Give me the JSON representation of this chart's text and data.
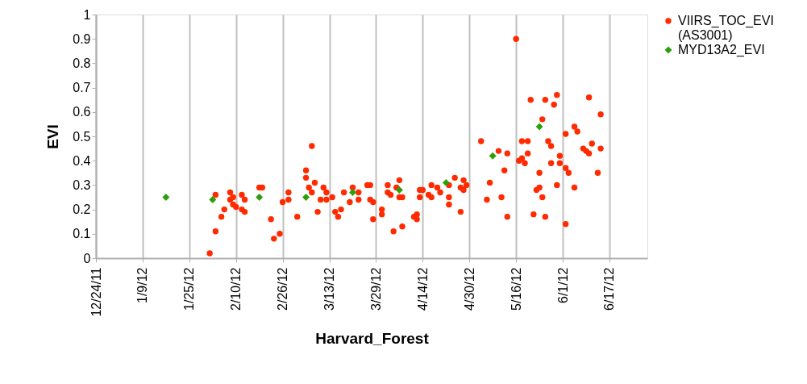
{
  "chart_data": {
    "type": "scatter",
    "xlabel": "Harvard_Forest",
    "ylabel": "EVI",
    "xlim": [
      "2011-12-24",
      "2012-06-30"
    ],
    "ylim": [
      0,
      1
    ],
    "xticks": [
      {
        "value": "2011-12-24",
        "label": "12/24/11"
      },
      {
        "value": "2012-01-09",
        "label": "1/9/12"
      },
      {
        "value": "2012-01-25",
        "label": "1/25/12"
      },
      {
        "value": "2012-02-10",
        "label": "2/10/12"
      },
      {
        "value": "2012-02-26",
        "label": "2/26/12"
      },
      {
        "value": "2012-03-13",
        "label": "3/13/12"
      },
      {
        "value": "2012-03-29",
        "label": "3/29/12"
      },
      {
        "value": "2012-04-14",
        "label": "4/14/12"
      },
      {
        "value": "2012-04-30",
        "label": "4/30/12"
      },
      {
        "value": "2012-05-16",
        "label": "5/16/12"
      },
      {
        "value": "2012-06-01",
        "label": "6/1/12"
      },
      {
        "value": "2012-06-17",
        "label": "6/17/12"
      }
    ],
    "yticks": [
      0,
      0.1,
      0.2,
      0.3,
      0.4,
      0.5,
      0.6,
      0.7,
      0.8,
      0.9,
      1
    ],
    "grid": "x",
    "legend": "right",
    "series": [
      {
        "name": "VIIRS_TOC_EVI (AS3001)",
        "color": "#ff2a00",
        "marker": "circle",
        "x": [
          "2012-02-01",
          "2012-02-03",
          "2012-02-03",
          "2012-02-05",
          "2012-02-06",
          "2012-02-08",
          "2012-02-08",
          "2012-02-09",
          "2012-02-09",
          "2012-02-10",
          "2012-02-12",
          "2012-02-12",
          "2012-02-13",
          "2012-02-13",
          "2012-02-18",
          "2012-02-19",
          "2012-02-22",
          "2012-02-23",
          "2012-02-25",
          "2012-02-26",
          "2012-02-28",
          "2012-02-28",
          "2012-03-02",
          "2012-03-05",
          "2012-03-05",
          "2012-03-06",
          "2012-03-07",
          "2012-03-07",
          "2012-03-08",
          "2012-03-09",
          "2012-03-11",
          "2012-03-12",
          "2012-03-10",
          "2012-03-12",
          "2012-03-14",
          "2012-03-15",
          "2012-03-16",
          "2012-03-17",
          "2012-03-18",
          "2012-03-20",
          "2012-03-21",
          "2012-03-23",
          "2012-03-23",
          "2012-03-26",
          "2012-03-27",
          "2012-03-27",
          "2012-03-28",
          "2012-03-28",
          "2012-03-31",
          "2012-03-31",
          "2012-04-02",
          "2012-04-02",
          "2012-04-03",
          "2012-04-04",
          "2012-04-05",
          "2012-04-06",
          "2012-04-06",
          "2012-04-07",
          "2012-04-07",
          "2012-04-11",
          "2012-04-12",
          "2012-04-12",
          "2012-04-13",
          "2012-04-13",
          "2012-04-14",
          "2012-04-16",
          "2012-04-17",
          "2012-04-17",
          "2012-04-19",
          "2012-04-20",
          "2012-04-23",
          "2012-04-23",
          "2012-04-23",
          "2012-04-25",
          "2012-04-27",
          "2012-04-27",
          "2012-04-28",
          "2012-04-28",
          "2012-04-29",
          "2012-05-04",
          "2012-05-06",
          "2012-05-07",
          "2012-05-10",
          "2012-05-11",
          "2012-05-12",
          "2012-05-13",
          "2012-05-13",
          "2012-05-16",
          "2012-05-17",
          "2012-05-18",
          "2012-05-18",
          "2012-05-19",
          "2012-05-20",
          "2012-05-20",
          "2012-05-21",
          "2012-05-22",
          "2012-05-23",
          "2012-05-24",
          "2012-05-24",
          "2012-05-25",
          "2012-05-25",
          "2012-05-26",
          "2012-05-26",
          "2012-05-27",
          "2012-05-28",
          "2012-05-28",
          "2012-05-29",
          "2012-05-30",
          "2012-05-30",
          "2012-05-31",
          "2012-05-31",
          "2012-06-02",
          "2012-06-02",
          "2012-06-02",
          "2012-06-03",
          "2012-06-05",
          "2012-06-05",
          "2012-06-06",
          "2012-06-08",
          "2012-06-09",
          "2012-06-10",
          "2012-06-10",
          "2012-06-11",
          "2012-06-13",
          "2012-06-14",
          "2012-06-14"
        ],
        "values": [
          0.02,
          0.26,
          0.11,
          0.17,
          0.2,
          0.27,
          0.24,
          0.25,
          0.22,
          0.21,
          0.26,
          0.2,
          0.24,
          0.19,
          0.29,
          0.29,
          0.16,
          0.08,
          0.1,
          0.23,
          0.27,
          0.24,
          0.17,
          0.36,
          0.33,
          0.29,
          0.46,
          0.27,
          0.31,
          0.19,
          0.29,
          0.27,
          0.24,
          0.24,
          0.25,
          0.19,
          0.17,
          0.2,
          0.27,
          0.23,
          0.29,
          0.24,
          0.27,
          0.3,
          0.3,
          0.24,
          0.23,
          0.16,
          0.2,
          0.18,
          0.3,
          0.27,
          0.26,
          0.11,
          0.29,
          0.32,
          0.25,
          0.25,
          0.13,
          0.17,
          0.18,
          0.16,
          0.28,
          0.25,
          0.28,
          0.26,
          0.3,
          0.25,
          0.29,
          0.27,
          0.25,
          0.22,
          0.3,
          0.33,
          0.29,
          0.19,
          0.32,
          0.28,
          0.3,
          0.48,
          0.24,
          0.31,
          0.44,
          0.25,
          0.36,
          0.43,
          0.17,
          0.9,
          0.4,
          0.48,
          0.41,
          0.39,
          0.48,
          0.43,
          0.65,
          0.18,
          0.28,
          0.29,
          0.35,
          0.25,
          0.57,
          0.65,
          0.17,
          0.48,
          0.46,
          0.39,
          0.63,
          0.67,
          0.3,
          0.42,
          0.39,
          0.14,
          0.51,
          0.37,
          0.35,
          0.54,
          0.29,
          0.52,
          0.45,
          0.44,
          0.43,
          0.66,
          0.47,
          0.35,
          0.59,
          0.45
        ]
      },
      {
        "name": "MYD13A2_EVI",
        "color": "#2e9e0b",
        "marker": "diamond",
        "x": [
          "2012-01-17",
          "2012-02-02",
          "2012-02-18",
          "2012-03-05",
          "2012-03-21",
          "2012-04-06",
          "2012-04-22",
          "2012-05-08",
          "2012-05-24"
        ],
        "values": [
          0.25,
          0.24,
          0.25,
          0.25,
          0.27,
          0.28,
          0.31,
          0.42,
          0.54
        ]
      }
    ]
  }
}
